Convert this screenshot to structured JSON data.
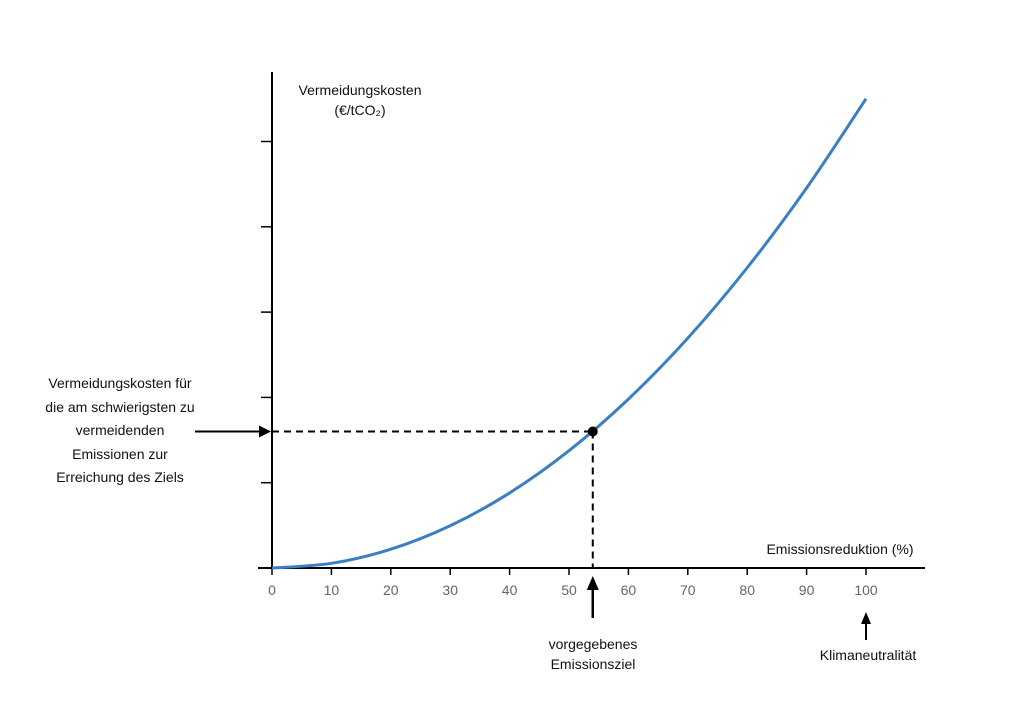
{
  "chart_data": {
    "type": "line",
    "ylabel": "Vermeidungskosten (€/tCO₂)",
    "ylabel_lines": [
      "Vermeidungskosten",
      "(€/tCO₂)"
    ],
    "xlabel": "Emissionsreduktion (%)",
    "xlim": [
      0,
      110
    ],
    "ylim": [
      0,
      5.8
    ],
    "x_ticks": [
      0,
      10,
      20,
      30,
      40,
      50,
      60,
      70,
      80,
      90,
      100
    ],
    "y_ticks": [
      1,
      2,
      3,
      4,
      5
    ],
    "y_tick_labels_shown": false,
    "grid": false,
    "series": [
      {
        "color": "#3a7fc1",
        "x": [
          0,
          10,
          20,
          30,
          40,
          50,
          60,
          70,
          80,
          90,
          100
        ],
        "y": [
          0,
          0.055,
          0.22,
          0.495,
          0.88,
          1.375,
          1.98,
          2.695,
          3.52,
          4.455,
          5.5
        ]
      }
    ],
    "highlight_point": {
      "x": 54,
      "y": 1.6
    },
    "annotations": {
      "target": [
        "vorgegebenes",
        "Emissionsziel"
      ],
      "neutral": [
        "Klimaneutralität"
      ],
      "neutral_x": 100,
      "cost": [
        "Vermeidungskosten für",
        "die am schwierigsten zu",
        "vermeidenden",
        "Emissionen zur",
        "Erreichung des Ziels"
      ]
    }
  }
}
